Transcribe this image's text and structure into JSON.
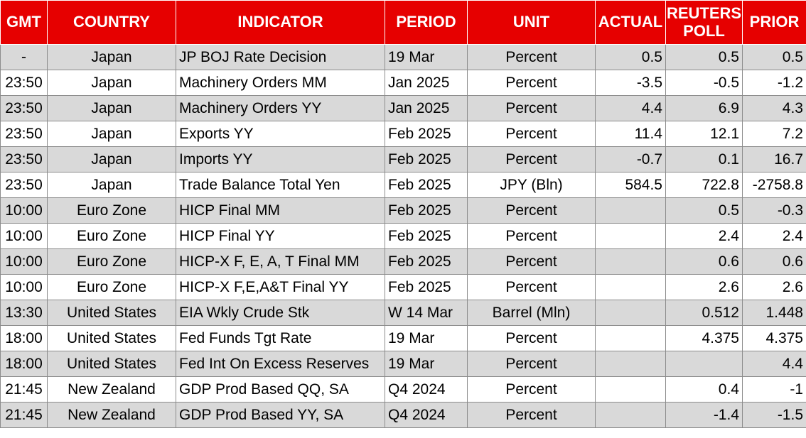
{
  "headers": {
    "gmt": "GMT",
    "country": "COUNTRY",
    "indicator": "INDICATOR",
    "period": "PERIOD",
    "unit": "UNIT",
    "actual": "ACTUAL",
    "reuters_poll_1": "REUTERS",
    "reuters_poll_2": "POLL",
    "prior": "PRIOR"
  },
  "colors": {
    "header_bg": "#e60000",
    "header_text": "#ffffff",
    "stripe": "#d9d9d9"
  },
  "rows": [
    {
      "gmt": "-",
      "country": "Japan",
      "indicator": "JP BOJ Rate Decision",
      "period": "19 Mar",
      "unit": "Percent",
      "actual": "0.5",
      "poll": "0.5",
      "prior": "0.5"
    },
    {
      "gmt": "23:50",
      "country": "Japan",
      "indicator": "Machinery Orders MM",
      "period": "Jan 2025",
      "unit": "Percent",
      "actual": "-3.5",
      "poll": "-0.5",
      "prior": "-1.2"
    },
    {
      "gmt": "23:50",
      "country": "Japan",
      "indicator": "Machinery Orders YY",
      "period": "Jan 2025",
      "unit": "Percent",
      "actual": "4.4",
      "poll": "6.9",
      "prior": "4.3"
    },
    {
      "gmt": "23:50",
      "country": "Japan",
      "indicator": "Exports YY",
      "period": "Feb 2025",
      "unit": "Percent",
      "actual": "11.4",
      "poll": "12.1",
      "prior": "7.2"
    },
    {
      "gmt": "23:50",
      "country": "Japan",
      "indicator": "Imports YY",
      "period": "Feb 2025",
      "unit": "Percent",
      "actual": "-0.7",
      "poll": "0.1",
      "prior": "16.7"
    },
    {
      "gmt": "23:50",
      "country": "Japan",
      "indicator": "Trade Balance Total Yen",
      "period": "Feb 2025",
      "unit": "JPY (Bln)",
      "actual": "584.5",
      "poll": "722.8",
      "prior": "-2758.8"
    },
    {
      "gmt": "10:00",
      "country": "Euro Zone",
      "indicator": "HICP Final MM",
      "period": "Feb 2025",
      "unit": "Percent",
      "actual": "",
      "poll": "0.5",
      "prior": "-0.3"
    },
    {
      "gmt": "10:00",
      "country": "Euro Zone",
      "indicator": "HICP Final YY",
      "period": "Feb 2025",
      "unit": "Percent",
      "actual": "",
      "poll": "2.4",
      "prior": "2.4"
    },
    {
      "gmt": "10:00",
      "country": "Euro Zone",
      "indicator": "HICP-X F, E, A, T Final MM",
      "period": "Feb 2025",
      "unit": "Percent",
      "actual": "",
      "poll": "0.6",
      "prior": "0.6"
    },
    {
      "gmt": "10:00",
      "country": "Euro Zone",
      "indicator": "HICP-X F,E,A&T Final YY",
      "period": "Feb 2025",
      "unit": "Percent",
      "actual": "",
      "poll": "2.6",
      "prior": "2.6"
    },
    {
      "gmt": "13:30",
      "country": "United States",
      "indicator": "EIA Wkly Crude Stk",
      "period": "W 14 Mar",
      "unit": "Barrel (Mln)",
      "actual": "",
      "poll": "0.512",
      "prior": "1.448"
    },
    {
      "gmt": "18:00",
      "country": "United States",
      "indicator": "Fed Funds Tgt Rate",
      "period": "19 Mar",
      "unit": "Percent",
      "actual": "",
      "poll": "4.375",
      "prior": "4.375"
    },
    {
      "gmt": "18:00",
      "country": "United States",
      "indicator": "Fed Int On Excess Reserves",
      "period": "19 Mar",
      "unit": "Percent",
      "actual": "",
      "poll": "",
      "prior": "4.4"
    },
    {
      "gmt": "21:45",
      "country": "New Zealand",
      "indicator": "GDP Prod Based QQ, SA",
      "period": "Q4 2024",
      "unit": "Percent",
      "actual": "",
      "poll": "0.4",
      "prior": "-1"
    },
    {
      "gmt": "21:45",
      "country": "New Zealand",
      "indicator": "GDP Prod Based YY, SA",
      "period": "Q4 2024",
      "unit": "Percent",
      "actual": "",
      "poll": "-1.4",
      "prior": "-1.5"
    }
  ]
}
